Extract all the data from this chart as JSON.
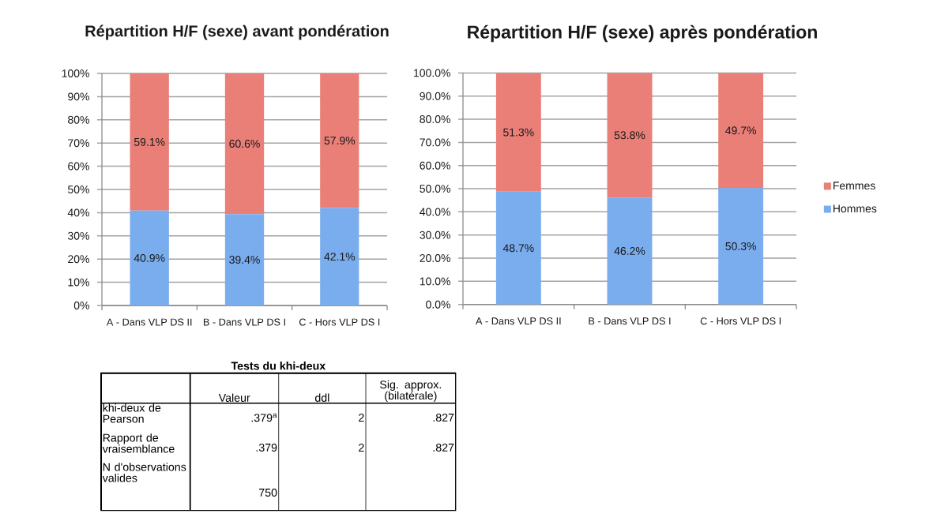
{
  "chart_data": [
    {
      "type": "bar",
      "title": "Répartition H/F (sexe) avant pondération",
      "categories": [
        "A - Dans VLP DS II",
        "B - Dans VLP DS I",
        "C - Hors VLP DS I"
      ],
      "stacked": true,
      "grid": "y",
      "ylim": [
        0,
        100
      ],
      "yticks": [
        {
          "value": 0,
          "label": "0%"
        },
        {
          "value": 10,
          "label": "10%"
        },
        {
          "value": 20,
          "label": "20%"
        },
        {
          "value": 30,
          "label": "30%"
        },
        {
          "value": 40,
          "label": "40%"
        },
        {
          "value": 50,
          "label": "50%"
        },
        {
          "value": 60,
          "label": "60%"
        },
        {
          "value": 70,
          "label": "70%"
        },
        {
          "value": 80,
          "label": "80%"
        },
        {
          "value": 90,
          "label": "90%"
        },
        {
          "value": 100,
          "label": "100%"
        }
      ],
      "series": [
        {
          "color": "#7aadee",
          "values": [
            40.9,
            39.4,
            42.1
          ],
          "value_labels": [
            "40.9%",
            "39.4%",
            "42.1%"
          ]
        },
        {
          "color": "#ea7f78",
          "values": [
            59.1,
            60.6,
            57.9
          ],
          "value_labels": [
            "59.1%",
            "60.6%",
            "57.9%"
          ]
        }
      ]
    },
    {
      "type": "bar",
      "title": "Répartition H/F (sexe) après pondération",
      "categories": [
        "A - Dans VLP DS II",
        "B - Dans VLP DS I",
        "C - Hors VLP DS I"
      ],
      "stacked": true,
      "grid": "y",
      "legend": "right",
      "ylim": [
        0,
        100
      ],
      "yticks": [
        {
          "value": 0,
          "label": "0.0%"
        },
        {
          "value": 10,
          "label": "10.0%"
        },
        {
          "value": 20,
          "label": "20.0%"
        },
        {
          "value": 30,
          "label": "30.0%"
        },
        {
          "value": 40,
          "label": "40.0%"
        },
        {
          "value": 50,
          "label": "50.0%"
        },
        {
          "value": 60,
          "label": "60.0%"
        },
        {
          "value": 70,
          "label": "70.0%"
        },
        {
          "value": 80,
          "label": "80.0%"
        },
        {
          "value": 90,
          "label": "90.0%"
        },
        {
          "value": 100,
          "label": "100.0%"
        }
      ],
      "series": [
        {
          "name": "Hommes",
          "color": "#7aadee",
          "values": [
            48.7,
            46.2,
            50.3
          ],
          "value_labels": [
            "48.7%",
            "46.2%",
            "50.3%"
          ]
        },
        {
          "name": "Femmes",
          "color": "#ea7f78",
          "values": [
            51.3,
            53.8,
            49.7
          ],
          "value_labels": [
            "51.3%",
            "53.8%",
            "49.7%"
          ]
        }
      ]
    },
    {
      "type": "other",
      "title": "Tests du khi-deux",
      "categories": [
        null,
        "Valeur",
        "ddl",
        "Sig. approx. (bilatérale)"
      ],
      "y_categories": [
        "khi-deux de Pearson",
        "Rapport de vraisemblance",
        "N d'observations valides"
      ],
      "cell_labels": [
        [
          ".379$^{a}$",
          "2",
          ".827"
        ],
        [
          ".379",
          "2",
          ".827"
        ],
        [
          "750",
          null,
          null
        ]
      ]
    }
  ]
}
